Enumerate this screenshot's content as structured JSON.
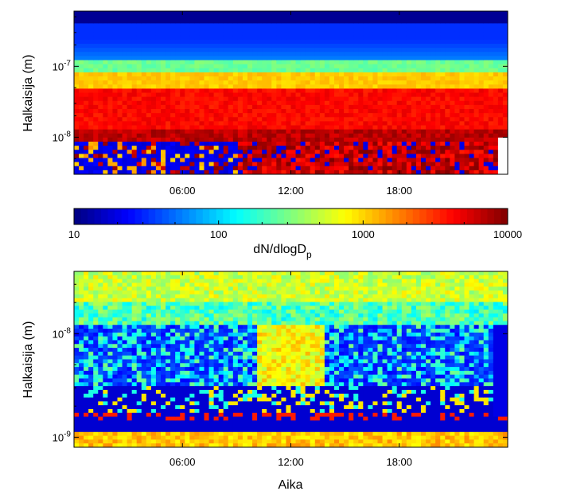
{
  "chart_data": [
    {
      "type": "heatmap",
      "title": "",
      "xlabel": "",
      "ylabel": "Halkaisija  (m)",
      "xlim_hours": [
        0,
        24
      ],
      "ylim_m": [
        3e-09,
        6e-07
      ],
      "y_scale": "log",
      "x_ticks": [
        "06:00",
        "12:00",
        "18:00"
      ],
      "y_ticks": [
        "10^-8",
        "10^-7"
      ],
      "grid": false,
      "dominant_features": {
        "above_1e-7_m": "cyan-green band, blue near top edge",
        "around_3e-8_m": "orange-red persistent mode",
        "below_1e-8_m_00-09h": "dark blue with scattered yellow/red pixels",
        "below_1e-8_m_09-24h": "red to dark-red elevated concentrations"
      }
    },
    {
      "type": "colorbar",
      "label_main": "dN/dlogD",
      "label_sub": "p",
      "scale": "log",
      "ticks": [
        "10",
        "100",
        "1000",
        "10000"
      ],
      "range": [
        10,
        10000
      ],
      "colormap": "jet"
    },
    {
      "type": "heatmap",
      "title": "",
      "xlabel": "Aika",
      "ylabel": "Halkaisija  (m)",
      "xlim_hours": [
        0,
        24
      ],
      "ylim_m": [
        8e-10,
        4e-08
      ],
      "y_scale": "log",
      "x_ticks": [
        "06:00",
        "12:00",
        "18:00"
      ],
      "y_ticks": [
        "10^-9",
        "10^-8"
      ],
      "grid": false,
      "dominant_features": {
        "top_band": "cyan-yellow concentrations",
        "middle_band": "blue with cyan/yellow event 10-14h",
        "bottom_band": "orange-yellow striped region near 1e-9 m",
        "row_near_1.6e-9_m": "red/orange pixels in several hours"
      }
    }
  ]
}
